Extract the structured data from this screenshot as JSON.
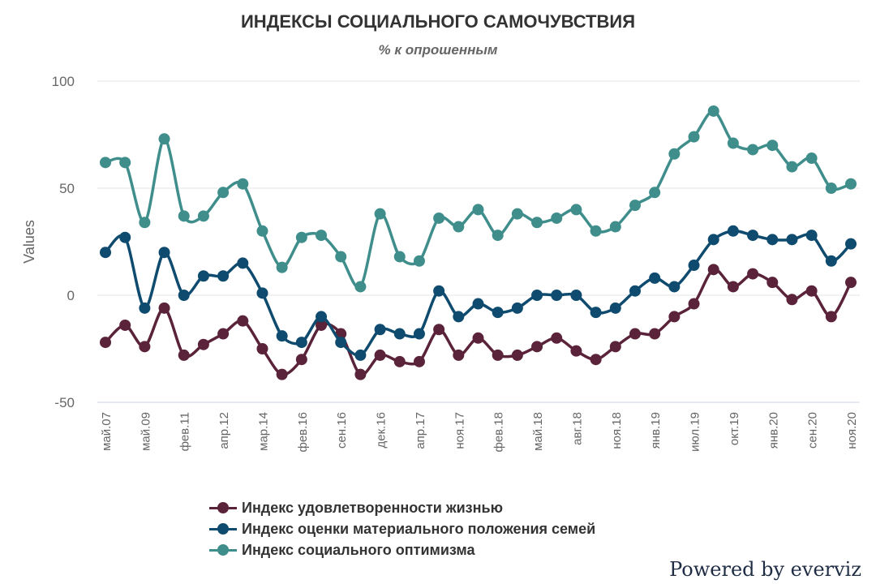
{
  "chart_data": {
    "type": "line",
    "title": "ИНДЕКСЫ СОЦИАЛЬНОГО САМОЧУВСТВИЯ",
    "subtitle": "% к опрошенным",
    "xlabel": "",
    "ylabel": "Values",
    "ylim": [
      -50,
      100
    ],
    "yticks": [
      100,
      50,
      0,
      -50
    ],
    "grid": true,
    "legend_position": "bottom",
    "x_tick_labels": [
      "май.07",
      "май.09",
      "фев.11",
      "апр.12",
      "мар.14",
      "фев.16",
      "сен.16",
      "дек.16",
      "апр.17",
      "ноя.17",
      "фев.18",
      "май.18",
      "авг.18",
      "ноя.18",
      "янв.19",
      "июл.19",
      "окт.19",
      "янв.20",
      "сен.20",
      "ноя.20"
    ],
    "x_tick_every": 2,
    "point_count": 39,
    "series": [
      {
        "name": "Индекс удовлетворенности жизнью",
        "color": "#5a2339",
        "values": [
          -22,
          -14,
          -24,
          -6,
          -28,
          -23,
          -18,
          -12,
          -25,
          -37,
          -30,
          -14,
          -18,
          -37,
          -28,
          -31,
          -31,
          -16,
          -28,
          -20,
          -28,
          -28,
          -24,
          -20,
          -26,
          -30,
          -24,
          -18,
          -18,
          -10,
          -4,
          12,
          4,
          10,
          6,
          -2,
          2,
          -10,
          6
        ]
      },
      {
        "name": "Индекс оценки материального положения семей",
        "color": "#0f4b6e",
        "values": [
          20,
          27,
          -6,
          20,
          0,
          9,
          9,
          15,
          1,
          -19,
          -22,
          -10,
          -22,
          -28,
          -16,
          -18,
          -18,
          2,
          -10,
          -4,
          -8,
          -6,
          0,
          0,
          0,
          -8,
          -6,
          2,
          8,
          4,
          14,
          26,
          30,
          28,
          26,
          26,
          28,
          16,
          24
        ]
      },
      {
        "name": "Индекс социального оптимизма",
        "color": "#3f8e8c",
        "values": [
          62,
          62,
          34,
          73,
          37,
          37,
          48,
          52,
          30,
          13,
          27,
          28,
          18,
          4,
          38,
          18,
          16,
          36,
          32,
          40,
          28,
          38,
          34,
          36,
          40,
          30,
          32,
          42,
          48,
          66,
          74,
          86,
          71,
          68,
          70,
          60,
          64,
          50,
          52
        ]
      }
    ]
  },
  "credits": "Powered by everviz"
}
